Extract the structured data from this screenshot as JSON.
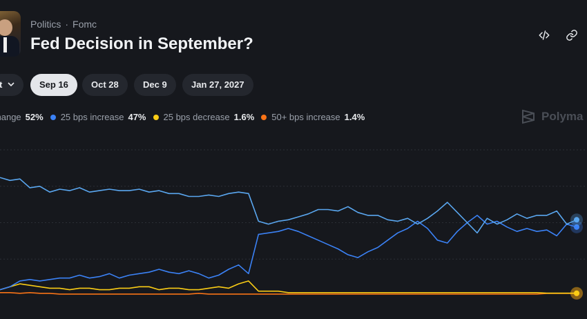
{
  "header": {
    "category": "Politics",
    "separator": "·",
    "tag": "Fomc",
    "title": "Fed Decision in September?"
  },
  "toolbar": {
    "embed_icon": "code-icon",
    "link_icon": "link-icon"
  },
  "date_chips": {
    "first_partial": "t",
    "items": [
      "Sep 16",
      "Oct 28",
      "Dec 9",
      "Jan 27, 2027"
    ],
    "selected": "Sep 16"
  },
  "legend": [
    {
      "label": "change",
      "value": "52%",
      "color": "#5aa7f0"
    },
    {
      "label": "25 bps increase",
      "value": "47%",
      "color": "#3b82f6"
    },
    {
      "label": "25 bps decrease",
      "value": "1.6%",
      "color": "#facc15"
    },
    {
      "label": "50+ bps increase",
      "value": "1.4%",
      "color": "#f97316"
    }
  ],
  "watermark": {
    "text": "Polyma"
  },
  "chart_data": {
    "type": "line",
    "ylim": [
      0,
      100
    ],
    "grid": true,
    "series": [
      {
        "name": "change",
        "color": "#5aa7f0",
        "values": [
          81,
          79,
          80,
          74,
          75,
          71,
          73,
          72,
          74,
          71,
          72,
          73,
          72,
          72,
          73,
          71,
          72,
          70,
          70,
          68,
          68,
          69,
          68,
          70,
          71,
          70,
          51,
          49,
          51,
          52,
          54,
          56,
          59,
          59,
          58,
          61,
          57,
          55,
          55,
          52,
          51,
          53,
          49,
          53,
          58,
          64,
          57,
          50,
          43,
          53,
          49,
          52,
          56,
          53,
          55,
          55,
          58,
          49,
          52
        ]
      },
      {
        "name": "25 bps increase",
        "color": "#3b82f6",
        "values": [
          4,
          6,
          10,
          11,
          10,
          11,
          12,
          12,
          14,
          12,
          13,
          15,
          12,
          14,
          15,
          16,
          18,
          16,
          15,
          17,
          15,
          12,
          14,
          18,
          21,
          15,
          42,
          43,
          44,
          46,
          44,
          41,
          38,
          35,
          32,
          28,
          26,
          30,
          33,
          38,
          43,
          46,
          51,
          46,
          38,
          36,
          44,
          50,
          55,
          49,
          51,
          47,
          44,
          46,
          44,
          45,
          41,
          49,
          47
        ]
      },
      {
        "name": "25 bps decrease",
        "color": "#facc15",
        "values": [
          4,
          6,
          8,
          7,
          6,
          5,
          5,
          4,
          5,
          5,
          4,
          4,
          5,
          5,
          6,
          6,
          4,
          5,
          5,
          4,
          4,
          5,
          6,
          5,
          8,
          10,
          3,
          3,
          3,
          2,
          2,
          2,
          2,
          2,
          2,
          2,
          2,
          2,
          2,
          2,
          2,
          2,
          2,
          2,
          2,
          2,
          2,
          2,
          2,
          2,
          2,
          2,
          2,
          2,
          2,
          1.6,
          1.6,
          1.6,
          1.6
        ]
      },
      {
        "name": "50+ bps increase",
        "color": "#f97316",
        "values": [
          2,
          2,
          1.5,
          2,
          1.5,
          1.5,
          1,
          1,
          1,
          1,
          1,
          1,
          1,
          1,
          1,
          1,
          1,
          1,
          1,
          1,
          1.5,
          1,
          1,
          1,
          1,
          1,
          1,
          1,
          1,
          1,
          1,
          1,
          1,
          1,
          1,
          1,
          1,
          1,
          1,
          1,
          1,
          1,
          1,
          1,
          1,
          1,
          1,
          1,
          1,
          1,
          1,
          1,
          1,
          1,
          1,
          1.4,
          1.4,
          1.4,
          1.4
        ]
      }
    ]
  }
}
